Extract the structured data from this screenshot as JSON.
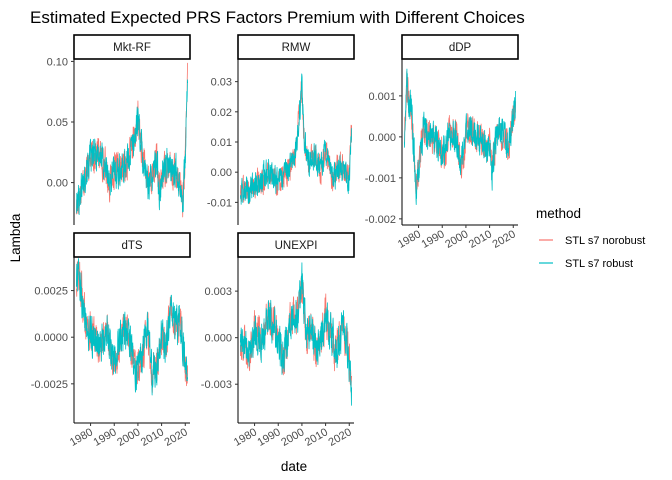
{
  "chart_data": {
    "type": "line",
    "title": "Estimated Expected PRS Factors Premium with Different Choices",
    "xlabel": "date",
    "ylabel": "Lambda",
    "legend": {
      "title": "method",
      "placement": "right",
      "entries": [
        {
          "label": "STL s7 norobust",
          "color": "#F8766D"
        },
        {
          "label": "STL s7 robust",
          "color": "#00BFC4"
        }
      ]
    },
    "x_tick_labels": [
      "1980",
      "1990",
      "2000",
      "2010",
      "2020"
    ],
    "x_ticks": [
      1980,
      1990,
      2000,
      2010,
      2020
    ],
    "xlim": [
      1973,
      2022
    ],
    "grid": false,
    "panels": [
      {
        "name": "Mkt-RF",
        "ylim": [
          -0.035,
          0.102
        ],
        "y_ticks": [
          0.0,
          0.05,
          0.1
        ],
        "y_tick_labels": [
          "0.00",
          "0.05",
          "0.10"
        ],
        "anchors": {
          "x": [
            1974,
            1976,
            1978,
            1980,
            1983,
            1986,
            1988,
            1990,
            1993,
            1996,
            1999,
            2000,
            2002,
            2004,
            2006,
            2008,
            2009,
            2010,
            2012,
            2014,
            2016,
            2018,
            2019,
            2020,
            2021
          ],
          "y": [
            -0.02,
            -0.005,
            0.01,
            0.02,
            0.025,
            0.015,
            0.0,
            0.01,
            0.01,
            0.02,
            0.04,
            0.055,
            0.02,
            0.0,
            0.005,
            0.02,
            -0.01,
            0.005,
            0.015,
            0.01,
            0.01,
            0.0,
            -0.015,
            0.02,
            0.09
          ]
        },
        "amp": 0.012
      },
      {
        "name": "RMW",
        "ylim": [
          -0.0175,
          0.0375
        ],
        "y_ticks": [
          -0.01,
          0.0,
          0.01,
          0.02,
          0.03
        ],
        "y_tick_labels": [
          "-0.01",
          "0.00",
          "0.01",
          "0.02",
          "0.03"
        ],
        "anchors": {
          "x": [
            1974,
            1978,
            1982,
            1986,
            1990,
            1994,
            1997,
            1999,
            2000,
            2001,
            2003,
            2006,
            2008,
            2010,
            2013,
            2016,
            2018,
            2020,
            2021
          ],
          "y": [
            -0.006,
            -0.005,
            -0.003,
            0.0,
            -0.004,
            0.0,
            0.005,
            0.02,
            0.028,
            0.01,
            0.003,
            0.005,
            0.0,
            0.008,
            -0.002,
            0.003,
            0.0,
            -0.003,
            0.015
          ]
        },
        "amp": 0.004
      },
      {
        "name": "dDP",
        "ylim": [
          -0.00215,
          0.0019
        ],
        "y_ticks": [
          -0.002,
          -0.001,
          0.0,
          0.001
        ],
        "y_tick_labels": [
          "-0.002",
          "-0.001",
          "0.000",
          "0.001"
        ],
        "anchors": {
          "x": [
            1974,
            1975,
            1976,
            1977,
            1979,
            1982,
            1985,
            1988,
            1991,
            1993,
            1996,
            1998,
            2001,
            2004,
            2007,
            2009,
            2010,
            2011,
            2013,
            2016,
            2018,
            2020,
            2021
          ],
          "y": [
            0.0,
            0.0013,
            0.0009,
            0.0006,
            -0.0012,
            0.0002,
            0.0001,
            -0.0002,
            -0.0004,
            0.0001,
            0.0,
            -0.0007,
            0.0003,
            0.0,
            0.0,
            -0.0004,
            0.0001,
            -0.0009,
            0.0001,
            0.0,
            -0.0002,
            0.0004,
            0.0007
          ]
        },
        "amp": 0.00035
      },
      {
        "name": "dTS",
        "ylim": [
          -0.0046,
          0.0043
        ],
        "y_ticks": [
          -0.0025,
          0.0,
          0.0025
        ],
        "y_tick_labels": [
          "-0.0025",
          "0.0000",
          "0.0025"
        ],
        "anchors": {
          "x": [
            1974,
            1975,
            1977,
            1979,
            1981,
            1984,
            1987,
            1990,
            1993,
            1996,
            1998,
            2000,
            2002,
            2004,
            2006,
            2008,
            2010,
            2012,
            2014,
            2016,
            2018,
            2020,
            2021
          ],
          "y": [
            0.003,
            0.0035,
            0.0015,
            0.0005,
            0.0,
            -0.0005,
            0.0005,
            -0.0015,
            0.0,
            0.0005,
            -0.0015,
            -0.002,
            -0.001,
            0.0005,
            -0.002,
            -0.0015,
            0.0,
            -0.0005,
            0.0015,
            0.0005,
            0.001,
            -0.0015,
            -0.002
          ]
        },
        "amp": 0.0009
      },
      {
        "name": "UNEXPI",
        "ylim": [
          -0.0055,
          0.0052
        ],
        "y_ticks": [
          -0.003,
          0.0,
          0.003
        ],
        "y_tick_labels": [
          "-0.003",
          "0.000",
          "0.003"
        ],
        "anchors": {
          "x": [
            1974,
            1977,
            1980,
            1983,
            1986,
            1989,
            1992,
            1995,
            1998,
            2000,
            2002,
            2004,
            2006,
            2008,
            2010,
            2012,
            2014,
            2016,
            2018,
            2020,
            2021
          ],
          "y": [
            0.0,
            -0.001,
            0.0005,
            0.0,
            0.0015,
            0.0005,
            -0.0015,
            0.001,
            0.0015,
            0.0035,
            0.0,
            0.001,
            -0.001,
            0.0,
            0.0015,
            0.0005,
            -0.001,
            0.0,
            0.0005,
            -0.0015,
            -0.0035
          ]
        },
        "amp": 0.0011
      }
    ]
  }
}
